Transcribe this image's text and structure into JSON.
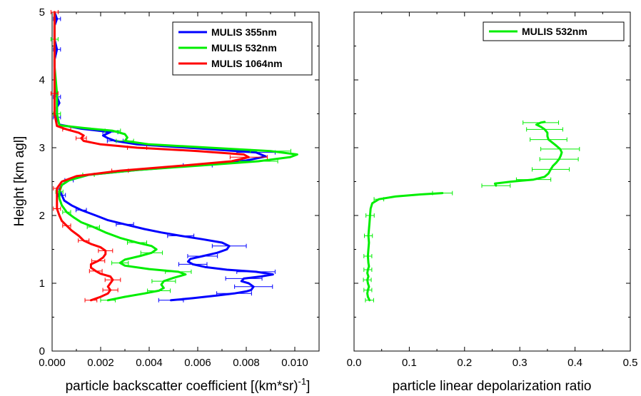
{
  "chart_data": [
    {
      "type": "line",
      "xlabel": "particle backscatter coefficient [(km*sr)",
      "xlabel_superscript": "-1",
      "xlabel_suffix": "]",
      "ylabel": "Height [km agl]",
      "xlim": [
        0,
        0.011
      ],
      "ylim": [
        0,
        5
      ],
      "x_ticks": [
        0.0,
        0.002,
        0.004,
        0.006,
        0.008,
        0.01
      ],
      "x_tick_labels": [
        "0.000",
        "0.002",
        "0.004",
        "0.006",
        "0.008",
        "0.010"
      ],
      "y_ticks": [
        0,
        1,
        2,
        3,
        4,
        5
      ],
      "y_tick_labels": [
        "0",
        "1",
        "2",
        "3",
        "4",
        "5"
      ],
      "grid": false,
      "legend_position": "top-right",
      "series": [
        {
          "name": "MULIS 355nm",
          "color": "#0000ff",
          "points": [
            [
              0.0049,
              0.75
            ],
            [
              0.0058,
              0.78
            ],
            [
              0.0068,
              0.82
            ],
            [
              0.0075,
              0.85
            ],
            [
              0.008,
              0.88
            ],
            [
              0.0082,
              0.9
            ],
            [
              0.0083,
              0.95
            ],
            [
              0.0081,
              1.0
            ],
            [
              0.0078,
              1.03
            ],
            [
              0.0079,
              1.07
            ],
            [
              0.0086,
              1.1
            ],
            [
              0.0091,
              1.13
            ],
            [
              0.0084,
              1.17
            ],
            [
              0.0072,
              1.2
            ],
            [
              0.0063,
              1.24
            ],
            [
              0.0058,
              1.28
            ],
            [
              0.0056,
              1.32
            ],
            [
              0.0057,
              1.36
            ],
            [
              0.0062,
              1.4
            ],
            [
              0.0068,
              1.45
            ],
            [
              0.0072,
              1.5
            ],
            [
              0.0073,
              1.55
            ],
            [
              0.007,
              1.6
            ],
            [
              0.0062,
              1.65
            ],
            [
              0.0053,
              1.7
            ],
            [
              0.0045,
              1.75
            ],
            [
              0.0038,
              1.8
            ],
            [
              0.003,
              1.87
            ],
            [
              0.0023,
              1.93
            ],
            [
              0.0018,
              2.0
            ],
            [
              0.0012,
              2.08
            ],
            [
              0.0008,
              2.15
            ],
            [
              0.0005,
              2.22
            ],
            [
              0.0004,
              2.3
            ],
            [
              0.0003,
              2.38
            ],
            [
              0.0004,
              2.45
            ],
            [
              0.0007,
              2.52
            ],
            [
              0.0015,
              2.6
            ],
            [
              0.0035,
              2.67
            ],
            [
              0.006,
              2.74
            ],
            [
              0.008,
              2.81
            ],
            [
              0.0088,
              2.87
            ],
            [
              0.0084,
              2.93
            ],
            [
              0.006,
              2.99
            ],
            [
              0.0035,
              3.05
            ],
            [
              0.0026,
              3.1
            ],
            [
              0.0023,
              3.14
            ],
            [
              0.0021,
              3.18
            ],
            [
              0.0024,
              3.23
            ],
            [
              0.0012,
              3.28
            ],
            [
              0.0003,
              3.34
            ],
            [
              0.0002,
              3.45
            ],
            [
              0.0002,
              3.6
            ],
            [
              0.0003,
              3.66
            ],
            [
              0.0002,
              3.75
            ],
            [
              0.0001,
              4.0
            ],
            [
              0.0001,
              4.3
            ],
            [
              0.0002,
              4.45
            ],
            [
              0.0001,
              4.6
            ],
            [
              0.0001,
              4.8
            ],
            [
              0.0002,
              4.9
            ],
            [
              0.0001,
              5.0
            ]
          ]
        },
        {
          "name": "MULIS 532nm",
          "color": "#00ee00",
          "points": [
            [
              0.0023,
              0.75
            ],
            [
              0.003,
              0.8
            ],
            [
              0.0038,
              0.85
            ],
            [
              0.0044,
              0.89
            ],
            [
              0.0046,
              0.93
            ],
            [
              0.0045,
              0.98
            ],
            [
              0.0046,
              1.03
            ],
            [
              0.005,
              1.08
            ],
            [
              0.0055,
              1.13
            ],
            [
              0.0052,
              1.17
            ],
            [
              0.004,
              1.21
            ],
            [
              0.003,
              1.26
            ],
            [
              0.0028,
              1.3
            ],
            [
              0.003,
              1.35
            ],
            [
              0.0036,
              1.4
            ],
            [
              0.0041,
              1.45
            ],
            [
              0.0043,
              1.5
            ],
            [
              0.0041,
              1.55
            ],
            [
              0.0035,
              1.6
            ],
            [
              0.0028,
              1.67
            ],
            [
              0.0022,
              1.75
            ],
            [
              0.0017,
              1.83
            ],
            [
              0.0012,
              1.9
            ],
            [
              0.0009,
              1.97
            ],
            [
              0.0006,
              2.05
            ],
            [
              0.0004,
              2.15
            ],
            [
              0.0003,
              2.25
            ],
            [
              0.0003,
              2.35
            ],
            [
              0.0004,
              2.45
            ],
            [
              0.0007,
              2.52
            ],
            [
              0.0015,
              2.6
            ],
            [
              0.0035,
              2.67
            ],
            [
              0.0062,
              2.74
            ],
            [
              0.0085,
              2.8
            ],
            [
              0.0098,
              2.86
            ],
            [
              0.0101,
              2.9
            ],
            [
              0.009,
              2.95
            ],
            [
              0.0065,
              3.0
            ],
            [
              0.004,
              3.05
            ],
            [
              0.003,
              3.1
            ],
            [
              0.0031,
              3.15
            ],
            [
              0.003,
              3.2
            ],
            [
              0.0025,
              3.25
            ],
            [
              0.0013,
              3.29
            ],
            [
              0.0003,
              3.33
            ],
            [
              0.0002,
              3.5
            ],
            [
              0.0002,
              3.8
            ],
            [
              0.0001,
              4.2
            ],
            [
              0.0001,
              4.6
            ],
            [
              0.0001,
              5.0
            ]
          ]
        },
        {
          "name": "MULIS 1064nm",
          "color": "#ff0000",
          "points": [
            [
              0.0016,
              0.75
            ],
            [
              0.002,
              0.8
            ],
            [
              0.0023,
              0.85
            ],
            [
              0.0024,
              0.9
            ],
            [
              0.0023,
              0.95
            ],
            [
              0.0024,
              1.0
            ],
            [
              0.0025,
              1.05
            ],
            [
              0.0024,
              1.1
            ],
            [
              0.002,
              1.14
            ],
            [
              0.0018,
              1.18
            ],
            [
              0.0016,
              1.23
            ],
            [
              0.0016,
              1.28
            ],
            [
              0.0019,
              1.33
            ],
            [
              0.0021,
              1.38
            ],
            [
              0.0022,
              1.43
            ],
            [
              0.0022,
              1.48
            ],
            [
              0.002,
              1.53
            ],
            [
              0.0016,
              1.58
            ],
            [
              0.0013,
              1.63
            ],
            [
              0.0011,
              1.7
            ],
            [
              0.0008,
              1.78
            ],
            [
              0.0006,
              1.85
            ],
            [
              0.0004,
              1.92
            ],
            [
              0.0003,
              2.0
            ],
            [
              0.0002,
              2.1
            ],
            [
              0.0002,
              2.2
            ],
            [
              0.0002,
              2.3
            ],
            [
              0.0002,
              2.4
            ],
            [
              0.0004,
              2.5
            ],
            [
              0.001,
              2.58
            ],
            [
              0.0028,
              2.66
            ],
            [
              0.0055,
              2.74
            ],
            [
              0.0074,
              2.8
            ],
            [
              0.0081,
              2.86
            ],
            [
              0.0079,
              2.9
            ],
            [
              0.006,
              2.95
            ],
            [
              0.0035,
              3.0
            ],
            [
              0.002,
              3.05
            ],
            [
              0.0013,
              3.1
            ],
            [
              0.0012,
              3.14
            ],
            [
              0.0013,
              3.18
            ],
            [
              0.0011,
              3.22
            ],
            [
              0.0006,
              3.27
            ],
            [
              0.0002,
              3.32
            ],
            [
              0.0001,
              3.5
            ],
            [
              0.0001,
              3.8
            ],
            [
              0.0001,
              4.2
            ],
            [
              0.0001,
              4.6
            ],
            [
              0.0001,
              5.0
            ]
          ]
        }
      ]
    },
    {
      "type": "line",
      "xlabel": "particle linear depolarization ratio",
      "ylabel": "",
      "xlim": [
        0,
        0.5
      ],
      "ylim": [
        0,
        5
      ],
      "x_ticks": [
        0.0,
        0.1,
        0.2,
        0.3,
        0.4,
        0.5
      ],
      "x_tick_labels": [
        "0.0",
        "0.1",
        "0.2",
        "0.3",
        "0.4",
        "0.5"
      ],
      "y_ticks": [
        0,
        1,
        2,
        3,
        4,
        5
      ],
      "grid": false,
      "legend_position": "top-right",
      "series": [
        {
          "name": "MULIS 532nm",
          "color": "#00ee00",
          "points_segments": [
            [
              [
                0.028,
                0.75
              ],
              [
                0.025,
                0.8
              ],
              [
                0.024,
                0.85
              ],
              [
                0.025,
                0.9
              ],
              [
                0.027,
                0.95
              ],
              [
                0.025,
                1.0
              ],
              [
                0.024,
                1.05
              ],
              [
                0.026,
                1.1
              ],
              [
                0.024,
                1.15
              ],
              [
                0.025,
                1.2
              ],
              [
                0.027,
                1.25
              ],
              [
                0.026,
                1.3
              ],
              [
                0.025,
                1.4
              ],
              [
                0.026,
                1.5
              ],
              [
                0.027,
                1.6
              ],
              [
                0.026,
                1.7
              ],
              [
                0.027,
                1.8
              ],
              [
                0.028,
                1.9
              ],
              [
                0.029,
                2.0
              ],
              [
                0.03,
                2.1
              ],
              [
                0.033,
                2.18
              ],
              [
                0.045,
                2.24
              ],
              [
                0.075,
                2.28
              ],
              [
                0.12,
                2.31
              ],
              [
                0.16,
                2.33
              ]
            ],
            [
              [
                0.257,
                2.44
              ],
              [
                0.255,
                2.47
              ],
              [
                0.285,
                2.5
              ],
              [
                0.325,
                2.53
              ],
              [
                0.345,
                2.57
              ],
              [
                0.352,
                2.62
              ],
              [
                0.356,
                2.68
              ],
              [
                0.36,
                2.73
              ],
              [
                0.366,
                2.78
              ],
              [
                0.371,
                2.83
              ],
              [
                0.374,
                2.88
              ],
              [
                0.376,
                2.93
              ],
              [
                0.373,
                2.98
              ],
              [
                0.366,
                3.03
              ],
              [
                0.36,
                3.07
              ],
              [
                0.352,
                3.12
              ],
              [
                0.35,
                3.17
              ],
              [
                0.35,
                3.22
              ],
              [
                0.345,
                3.27
              ],
              [
                0.338,
                3.31
              ],
              [
                0.33,
                3.34
              ],
              [
                0.338,
                3.37
              ],
              [
                0.345,
                3.38
              ]
            ]
          ]
        }
      ]
    }
  ]
}
